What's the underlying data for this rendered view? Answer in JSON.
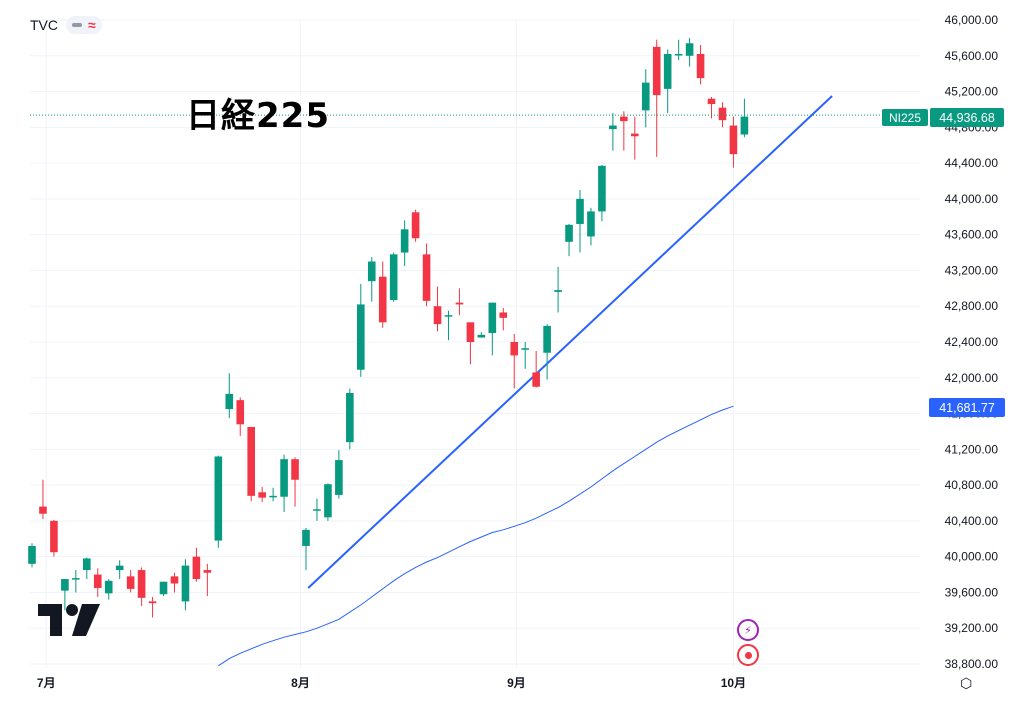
{
  "header": {
    "source": "TVC",
    "dash_icon": "minus-icon",
    "wave_icon": "approx-icon",
    "wave_glyph": "≈"
  },
  "title": "日経225",
  "badges": {
    "symbol": "NI225",
    "last_price": "44,936.68",
    "ma_value": "41,681.77"
  },
  "chart_data": {
    "type": "candlestick",
    "title": "日経225",
    "ylim": [
      38700,
      46050
    ],
    "y_ticks": [
      38800,
      39200,
      39600,
      40000,
      40400,
      40800,
      41200,
      41600,
      42000,
      42400,
      42800,
      43200,
      43600,
      44000,
      44400,
      44800,
      45200,
      45600,
      46000
    ],
    "y_tick_labels": [
      "38,800.00",
      "39,200.00",
      "39,600.00",
      "40,000.00",
      "40,400.00",
      "40,800.00",
      "41,200.00",
      "41,600.00",
      "42,000.00",
      "42,400.00",
      "42,800.00",
      "43,200.00",
      "43,600.00",
      "44,000.00",
      "44,400.00",
      "44,800.00",
      "45,200.00",
      "45,600.00",
      "46,000.00"
    ],
    "x_ticks": [
      {
        "index": 1.3,
        "label": "7月"
      },
      {
        "index": 24.5,
        "label": "8月"
      },
      {
        "index": 44.2,
        "label": "9月"
      },
      {
        "index": 64.0,
        "label": "10月"
      }
    ],
    "up_color": "#089981",
    "down_color": "#f23645",
    "candles": [
      [
        39920,
        40150,
        39880,
        40120
      ],
      [
        40560,
        40860,
        40420,
        40480
      ],
      [
        40400,
        40410,
        40000,
        40050
      ],
      [
        39620,
        39750,
        39400,
        39750
      ],
      [
        39750,
        39850,
        39600,
        39760
      ],
      [
        39850,
        39990,
        39750,
        39980
      ],
      [
        39800,
        39870,
        39550,
        39650
      ],
      [
        39590,
        39750,
        39520,
        39730
      ],
      [
        39850,
        39960,
        39750,
        39900
      ],
      [
        39780,
        39850,
        39600,
        39640
      ],
      [
        39850,
        39880,
        39450,
        39540
      ],
      [
        39500,
        39550,
        39320,
        39480
      ],
      [
        39580,
        39720,
        39560,
        39720
      ],
      [
        39780,
        39820,
        39600,
        39700
      ],
      [
        39500,
        39970,
        39400,
        39900
      ],
      [
        40000,
        40100,
        39720,
        39750
      ],
      [
        39850,
        39920,
        39560,
        39820
      ],
      [
        40180,
        41130,
        40100,
        41120
      ],
      [
        41650,
        42050,
        41550,
        41820
      ],
      [
        41750,
        41780,
        41350,
        41480
      ],
      [
        41450,
        41450,
        40620,
        40680
      ],
      [
        40720,
        40780,
        40610,
        40660
      ],
      [
        40670,
        40770,
        40620,
        40680
      ],
      [
        40670,
        41140,
        40500,
        41090
      ],
      [
        41090,
        41110,
        40560,
        40860
      ],
      [
        40120,
        40320,
        39850,
        40300
      ],
      [
        40520,
        40650,
        40400,
        40530
      ],
      [
        40440,
        40820,
        40400,
        40810
      ],
      [
        40690,
        41190,
        40650,
        41080
      ],
      [
        41280,
        41880,
        41200,
        41830
      ],
      [
        42090,
        43050,
        42010,
        42820
      ],
      [
        43080,
        43350,
        42850,
        43300
      ],
      [
        43130,
        43300,
        42560,
        42620
      ],
      [
        42870,
        43400,
        42850,
        43380
      ],
      [
        43400,
        43760,
        43250,
        43660
      ],
      [
        43850,
        43880,
        43520,
        43560
      ],
      [
        43380,
        43500,
        42800,
        42860
      ],
      [
        42800,
        43020,
        42520,
        42600
      ],
      [
        42700,
        42750,
        42420,
        42700
      ],
      [
        42840,
        43000,
        42700,
        42820
      ],
      [
        42620,
        42620,
        42150,
        42400
      ],
      [
        42450,
        42510,
        42450,
        42480
      ],
      [
        42500,
        42840,
        42250,
        42840
      ],
      [
        42730,
        42780,
        42530,
        42670
      ],
      [
        42400,
        42490,
        41880,
        42250
      ],
      [
        42320,
        42400,
        42100,
        42330
      ],
      [
        42060,
        42300,
        41890,
        41900
      ],
      [
        42280,
        42600,
        41980,
        42580
      ],
      [
        42960,
        43240,
        42730,
        42980
      ],
      [
        43520,
        43720,
        43360,
        43710
      ],
      [
        43720,
        44100,
        43400,
        44000
      ],
      [
        43580,
        43900,
        43480,
        43860
      ],
      [
        43860,
        44380,
        43750,
        44370
      ],
      [
        44780,
        44960,
        44540,
        44820
      ],
      [
        44920,
        44980,
        44540,
        44870
      ],
      [
        44730,
        44920,
        44440,
        44700
      ],
      [
        44990,
        45450,
        44800,
        45300
      ],
      [
        45700,
        45780,
        44470,
        45160
      ],
      [
        45230,
        45670,
        44960,
        45620
      ],
      [
        45620,
        45780,
        45550,
        45620
      ],
      [
        45600,
        45800,
        45480,
        45740
      ],
      [
        45620,
        45720,
        45280,
        45350
      ],
      [
        45120,
        45140,
        44900,
        45060
      ],
      [
        45020,
        45080,
        44800,
        44880
      ],
      [
        44820,
        44920,
        44350,
        44500
      ],
      [
        44720,
        45120,
        44690,
        44920
      ]
    ],
    "ma_series": {
      "start_index": 17,
      "values": [
        38780,
        38860,
        38920,
        38970,
        39020,
        39060,
        39100,
        39130,
        39160,
        39200,
        39250,
        39300,
        39380,
        39460,
        39550,
        39640,
        39730,
        39810,
        39880,
        39940,
        39990,
        40050,
        40110,
        40170,
        40220,
        40270,
        40300,
        40340,
        40380,
        40430,
        40490,
        40550,
        40620,
        40700,
        40780,
        40870,
        40960,
        41040,
        41120,
        41200,
        41280,
        41350,
        41410,
        41470,
        41530,
        41590,
        41640,
        41682
      ]
    },
    "trendline": {
      "x0": 25.2,
      "y0": 39650,
      "x1": 73.0,
      "y1": 45150
    },
    "last_price_value": 44936.68
  }
}
